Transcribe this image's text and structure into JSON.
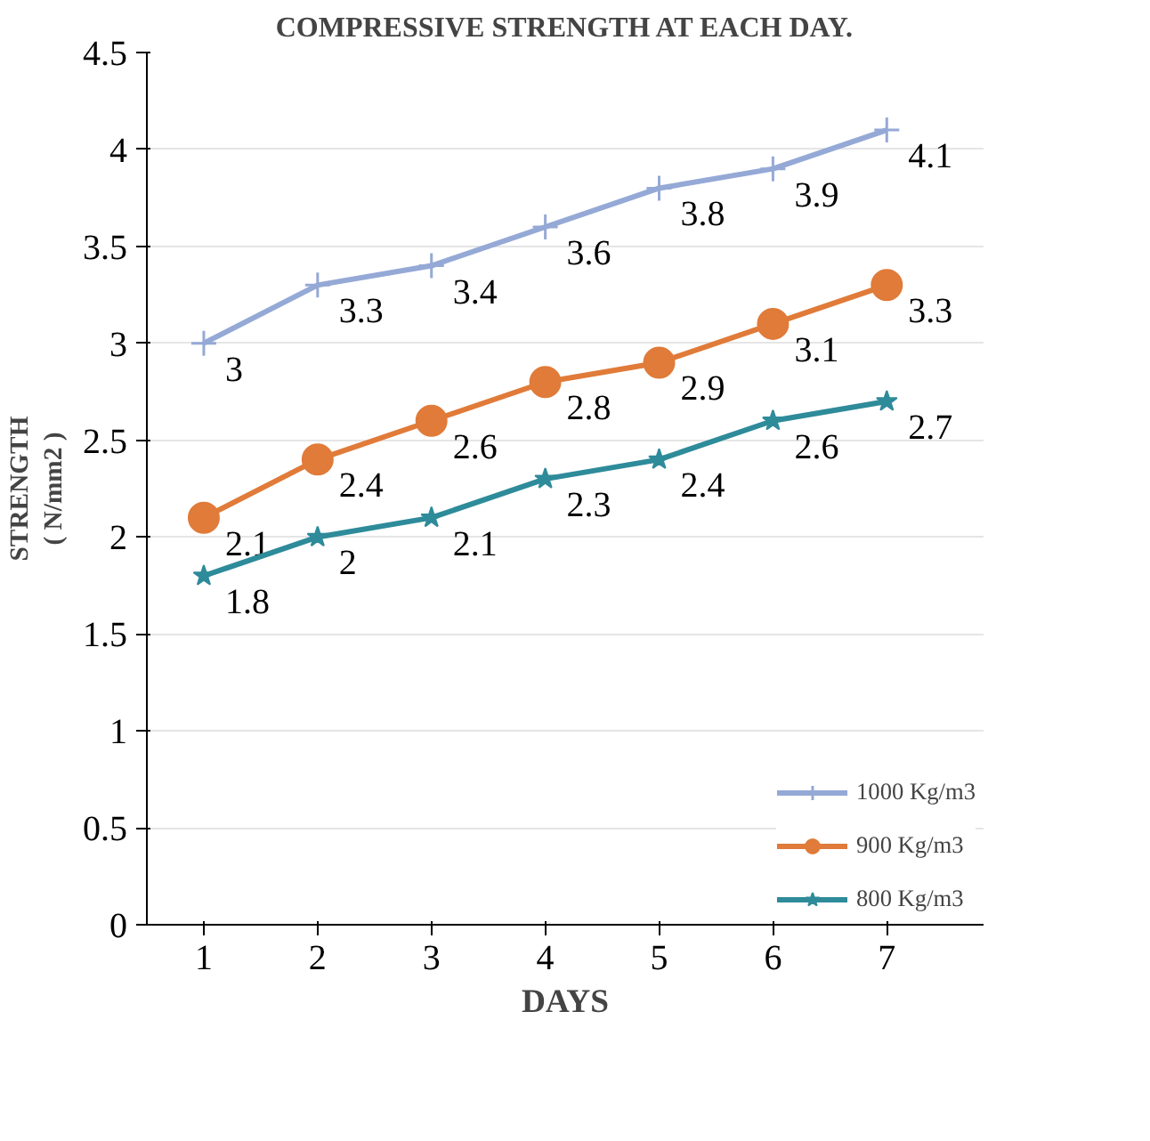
{
  "chart_data": {
    "type": "line",
    "title": "COMPRESSIVE STRENGTH AT EACH DAY.",
    "xlabel": "DAYS",
    "ylabel": "STRENGTH\n( N/mm2 )",
    "categories": [
      "1",
      "2",
      "3",
      "4",
      "5",
      "6",
      "7"
    ],
    "series": [
      {
        "name": "1000 Kg/m3",
        "color": "#95a9d6",
        "marker": "cross",
        "values": [
          3,
          3.3,
          3.4,
          3.6,
          3.8,
          3.9,
          4.1
        ]
      },
      {
        "name": "900 Kg/m3",
        "color": "#e07b39",
        "marker": "circle",
        "values": [
          2.1,
          2.4,
          2.6,
          2.8,
          2.9,
          3.1,
          3.3
        ]
      },
      {
        "name": "800 Kg/m3",
        "color": "#2e8b9a",
        "marker": "star",
        "values": [
          1.8,
          2,
          2.1,
          2.3,
          2.4,
          2.6,
          2.7
        ]
      }
    ],
    "ylim": [
      0,
      4.5
    ],
    "yticks": [
      0,
      0.5,
      1,
      1.5,
      2,
      2.5,
      3,
      3.5,
      4,
      4.5
    ],
    "grid": "y",
    "legend": "bottom right",
    "data_labels": true
  }
}
